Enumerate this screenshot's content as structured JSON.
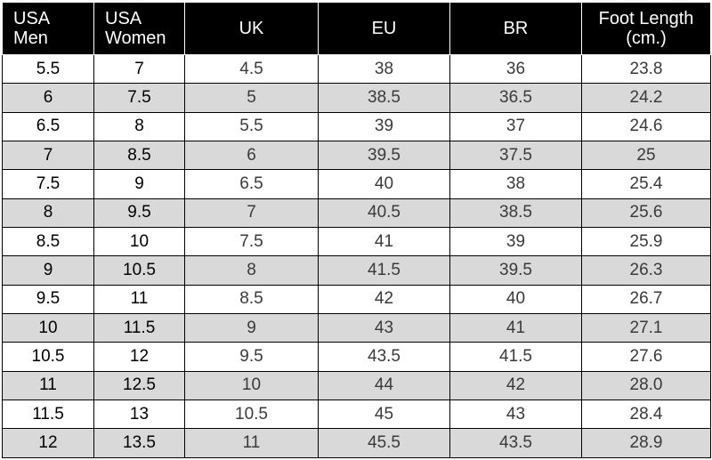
{
  "table": {
    "headers": {
      "usa_men_line1": "USA",
      "usa_men_line2": "Men",
      "usa_women_line1": "USA",
      "usa_women_line2": "Women",
      "uk": "UK",
      "eu": "EU",
      "br": "BR",
      "foot_length_line1": "Foot Length",
      "foot_length_line2": "(cm.)"
    },
    "rows": [
      {
        "men": "5.5",
        "women": "7",
        "uk": "4.5",
        "eu": "38",
        "br": "36",
        "foot": "23.8"
      },
      {
        "men": "6",
        "women": "7.5",
        "uk": "5",
        "eu": "38.5",
        "br": "36.5",
        "foot": "24.2"
      },
      {
        "men": "6.5",
        "women": "8",
        "uk": "5.5",
        "eu": "39",
        "br": "37",
        "foot": "24.6"
      },
      {
        "men": "7",
        "women": "8.5",
        "uk": "6",
        "eu": "39.5",
        "br": "37.5",
        "foot": "25"
      },
      {
        "men": "7.5",
        "women": "9",
        "uk": "6.5",
        "eu": "40",
        "br": "38",
        "foot": "25.4"
      },
      {
        "men": "8",
        "women": "9.5",
        "uk": "7",
        "eu": "40.5",
        "br": "38.5",
        "foot": "25.6"
      },
      {
        "men": "8.5",
        "women": "10",
        "uk": "7.5",
        "eu": "41",
        "br": "39",
        "foot": "25.9"
      },
      {
        "men": "9",
        "women": "10.5",
        "uk": "8",
        "eu": "41.5",
        "br": "39.5",
        "foot": "26.3"
      },
      {
        "men": "9.5",
        "women": "11",
        "uk": "8.5",
        "eu": "42",
        "br": "40",
        "foot": "26.7"
      },
      {
        "men": "10",
        "women": "11.5",
        "uk": "9",
        "eu": "43",
        "br": "41",
        "foot": "27.1"
      },
      {
        "men": "10.5",
        "women": "12",
        "uk": "9.5",
        "eu": "43.5",
        "br": "41.5",
        "foot": "27.6"
      },
      {
        "men": "11",
        "women": "12.5",
        "uk": "10",
        "eu": "44",
        "br": "42",
        "foot": "28.0"
      },
      {
        "men": "11.5",
        "women": "13",
        "uk": "10.5",
        "eu": "45",
        "br": "43",
        "foot": "28.4"
      },
      {
        "men": "12",
        "women": "13.5",
        "uk": "11",
        "eu": "45.5",
        "br": "43.5",
        "foot": "28.9"
      }
    ],
    "colors": {
      "header_bg": "#000000",
      "header_text": "#ffffff",
      "shaded_row": "#d9d9d9",
      "plain_row": "#ffffff"
    }
  }
}
